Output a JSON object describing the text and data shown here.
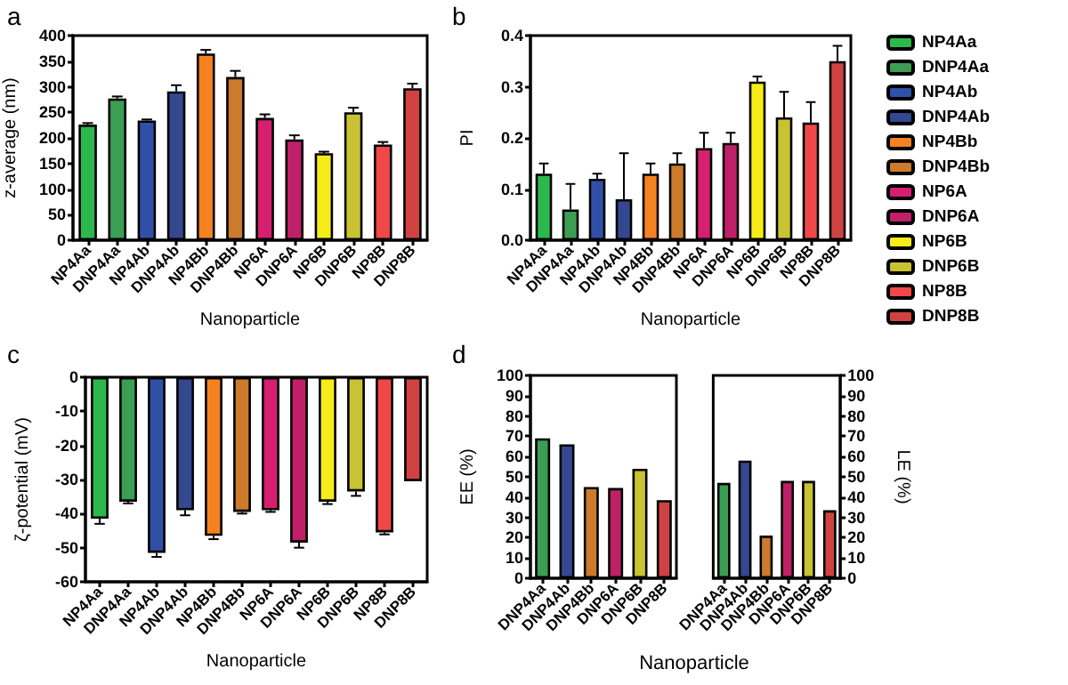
{
  "chart_data": [
    {
      "type": "bar",
      "annotations": [
        "a"
      ],
      "xlabel": "Nanoparticle",
      "ylabel": "z-average (nm)",
      "legend": "right",
      "stacked": true,
      "categories": [
        "NP4Aa",
        "DNP4Aa",
        "NP4Ab",
        "DNP4Ab",
        "NP4Bb",
        "DNP4Bb",
        "NP6A",
        "DNP6A",
        "NP6B",
        "DNP6B",
        "NP8B",
        "DNP8B"
      ],
      "series": [
        {
          "name": "NP4Aa",
          "color": "#2db84d",
          "values": [
            226,
            null,
            null,
            null,
            null,
            null,
            null,
            null,
            null,
            null,
            null,
            null
          ],
          "errors": [
            [
              226,
              229
            ],
            null,
            null,
            null,
            null,
            null,
            null,
            null,
            null,
            null,
            null,
            null
          ]
        },
        {
          "name": "DNP4Aa",
          "color": "#3b9e52",
          "values": [
            null,
            277,
            null,
            null,
            null,
            null,
            null,
            null,
            null,
            null,
            null,
            null
          ],
          "errors": [
            null,
            [
              277,
              281
            ],
            null,
            null,
            null,
            null,
            null,
            null,
            null,
            null,
            null,
            null
          ]
        },
        {
          "name": "NP4Ab",
          "color": "#3050a8",
          "values": [
            null,
            null,
            234,
            null,
            null,
            null,
            null,
            null,
            null,
            null,
            null,
            null
          ],
          "errors": [
            null,
            null,
            [
              234,
              236
            ],
            null,
            null,
            null,
            null,
            null,
            null,
            null,
            null,
            null
          ]
        },
        {
          "name": "DNP4Ab",
          "color": "#34488f",
          "values": [
            null,
            null,
            null,
            291,
            null,
            null,
            null,
            null,
            null,
            null,
            null,
            null
          ],
          "errors": [
            null,
            null,
            null,
            [
              291,
              303
            ],
            null,
            null,
            null,
            null,
            null,
            null,
            null,
            null
          ]
        },
        {
          "name": "NP4Bb",
          "color": "#f58220",
          "values": [
            null,
            null,
            null,
            null,
            365,
            null,
            null,
            null,
            null,
            null,
            null,
            null
          ],
          "errors": [
            null,
            null,
            null,
            null,
            [
              365,
              372
            ],
            null,
            null,
            null,
            null,
            null,
            null,
            null
          ]
        },
        {
          "name": "DNP4Bb",
          "color": "#cc7a2c",
          "values": [
            null,
            null,
            null,
            null,
            null,
            319,
            null,
            null,
            null,
            null,
            null,
            null
          ],
          "errors": [
            null,
            null,
            null,
            null,
            null,
            [
              319,
              331
            ],
            null,
            null,
            null,
            null,
            null,
            null
          ]
        },
        {
          "name": "NP6A",
          "color": "#d61f6e",
          "values": [
            null,
            null,
            null,
            null,
            null,
            null,
            239,
            null,
            null,
            null,
            null,
            null
          ],
          "errors": [
            null,
            null,
            null,
            null,
            null,
            null,
            [
              239,
              246
            ],
            null,
            null,
            null,
            null,
            null
          ]
        },
        {
          "name": "DNP6A",
          "color": "#c02068",
          "values": [
            null,
            null,
            null,
            null,
            null,
            null,
            null,
            197,
            null,
            null,
            null,
            null
          ],
          "errors": [
            null,
            null,
            null,
            null,
            null,
            null,
            null,
            [
              197,
              205
            ],
            null,
            null,
            null,
            null
          ]
        },
        {
          "name": "NP6B",
          "color": "#f5ec1a",
          "values": [
            null,
            null,
            null,
            null,
            null,
            null,
            null,
            null,
            170,
            null,
            null,
            null
          ],
          "errors": [
            null,
            null,
            null,
            null,
            null,
            null,
            null,
            null,
            [
              170,
              173
            ],
            null,
            null,
            null
          ]
        },
        {
          "name": "DNP6B",
          "color": "#c9c232",
          "values": [
            null,
            null,
            null,
            null,
            null,
            null,
            null,
            null,
            null,
            250,
            null,
            null
          ],
          "errors": [
            null,
            null,
            null,
            null,
            null,
            null,
            null,
            null,
            null,
            [
              250,
              259
            ],
            null,
            null
          ]
        },
        {
          "name": "NP8B",
          "color": "#f04848",
          "values": [
            null,
            null,
            null,
            null,
            null,
            null,
            null,
            null,
            null,
            null,
            187,
            null
          ],
          "errors": [
            null,
            null,
            null,
            null,
            null,
            null,
            null,
            null,
            null,
            null,
            [
              187,
              192
            ],
            null
          ]
        },
        {
          "name": "DNP8B",
          "color": "#d04242",
          "values": [
            null,
            null,
            null,
            null,
            null,
            null,
            null,
            null,
            null,
            null,
            null,
            297
          ],
          "errors": [
            null,
            null,
            null,
            null,
            null,
            null,
            null,
            null,
            null,
            null,
            null,
            [
              297,
              306
            ]
          ]
        }
      ],
      "ylim": [
        0,
        400
      ],
      "yticks": [
        0,
        50,
        100,
        150,
        200,
        250,
        300,
        350,
        400
      ],
      "grid": false
    },
    {
      "type": "bar",
      "annotations": [
        "b"
      ],
      "xlabel": "Nanoparticle",
      "ylabel": "PI",
      "categories": [
        "NP4Aa",
        "DNP4Aa",
        "NP4Ab",
        "DNP4Ab",
        "NP4Bb",
        "DNP4Bb",
        "NP6A",
        "DNP6A",
        "NP6B",
        "DNP6B",
        "NP8B",
        "DNP8B"
      ],
      "values": [
        0.13,
        0.06,
        0.12,
        0.08,
        0.13,
        0.15,
        0.18,
        0.19,
        0.31,
        0.24,
        0.23,
        0.35
      ],
      "errors": [
        [
          0.13,
          0.15
        ],
        [
          0.06,
          0.11
        ],
        [
          0.12,
          0.13
        ],
        [
          0.08,
          0.17
        ],
        [
          0.13,
          0.15
        ],
        [
          0.15,
          0.17
        ],
        [
          0.18,
          0.21
        ],
        [
          0.19,
          0.21
        ],
        [
          0.31,
          0.32
        ],
        [
          0.24,
          0.29
        ],
        [
          0.23,
          0.27
        ],
        [
          0.35,
          0.38
        ]
      ],
      "colors": [
        "#2db84d",
        "#3b9e52",
        "#3050a8",
        "#34488f",
        "#f58220",
        "#cc7a2c",
        "#d61f6e",
        "#c02068",
        "#f5ec1a",
        "#c9c232",
        "#f04848",
        "#d04242"
      ],
      "ylim": [
        0,
        0.4
      ],
      "yticks": [
        {
          "value": 0,
          "label": "0.0"
        },
        0.1,
        0.2,
        0.3,
        0.4
      ],
      "grid": false
    },
    {
      "type": "bar",
      "annotations": [
        "c"
      ],
      "xlabel": "Nanoparticle",
      "ylabel": "ζ-potential (mV)",
      "categories": [
        "NP4Aa",
        "DNP4Aa",
        "NP4Ab",
        "DNP4Ab",
        "NP4Bb",
        "DNP4Bb",
        "NP6A",
        "DNP6A",
        "NP6B",
        "DNP6B",
        "NP8B",
        "DNP8B"
      ],
      "values": [
        -41.5,
        -36.5,
        -51.5,
        -39,
        -46.5,
        -39.5,
        -39,
        -48.5,
        -36.5,
        -33.5,
        -45.5,
        -30.5
      ],
      "errors": [
        [
          -43,
          -41.5
        ],
        [
          -37,
          -36.5
        ],
        [
          -52.7,
          -51.5
        ],
        [
          -40.5,
          -39
        ],
        [
          -47.5,
          -46.5
        ],
        [
          -40,
          -39.5
        ],
        [
          -39.5,
          -39
        ],
        [
          -50,
          -48.5
        ],
        [
          -37.2,
          -36.5
        ],
        [
          -34.8,
          -33.5
        ],
        [
          -46.1,
          -45.5
        ],
        null
      ],
      "colors": [
        "#2db84d",
        "#3b9e52",
        "#3050a8",
        "#34488f",
        "#f58220",
        "#cc7a2c",
        "#d61f6e",
        "#c02068",
        "#f5ec1a",
        "#c9c232",
        "#f04848",
        "#d04242"
      ],
      "ylim": [
        -60,
        0
      ],
      "yticks": [
        -60,
        -50,
        -40,
        -30,
        -20,
        -10,
        0
      ],
      "grid": false
    },
    {
      "type": "bar",
      "annotations": [
        "d"
      ],
      "xlabel": "Nanoparticle",
      "ylabel": "EE (%)",
      "categories": [
        "DNP4Aa",
        "DNP4Ab",
        "DNP4Bb",
        "DNP6A",
        "DNP6B",
        "DNP8B"
      ],
      "values": [
        69,
        66,
        45,
        44.5,
        54,
        38.5
      ],
      "colors": [
        "#3b9e52",
        "#34488f",
        "#cc7a2c",
        "#c02068",
        "#c9c232",
        "#d04242"
      ],
      "ylim": [
        0,
        100
      ],
      "yticks": [
        0,
        10,
        20,
        30,
        40,
        50,
        60,
        70,
        80,
        90,
        100
      ],
      "grid": false
    },
    {
      "type": "bar",
      "y2label": "LE (%)",
      "categories": [
        "DNP4Aa",
        "DNP4Ab",
        "DNP4Bb",
        "DNP6A",
        "DNP6B",
        "DNP8B"
      ],
      "series": [
        {
          "axis": "y2",
          "values": [
            47,
            58,
            21,
            48,
            48,
            33.5
          ],
          "colors": [
            "#3b9e52",
            "#34488f",
            "#cc7a2c",
            "#c02068",
            "#c9c232",
            "#d04242"
          ]
        }
      ],
      "y2lim": [
        0,
        100
      ],
      "y2ticks": [
        0,
        10,
        20,
        30,
        40,
        50,
        60,
        70,
        80,
        90,
        100
      ],
      "grid": false
    }
  ]
}
